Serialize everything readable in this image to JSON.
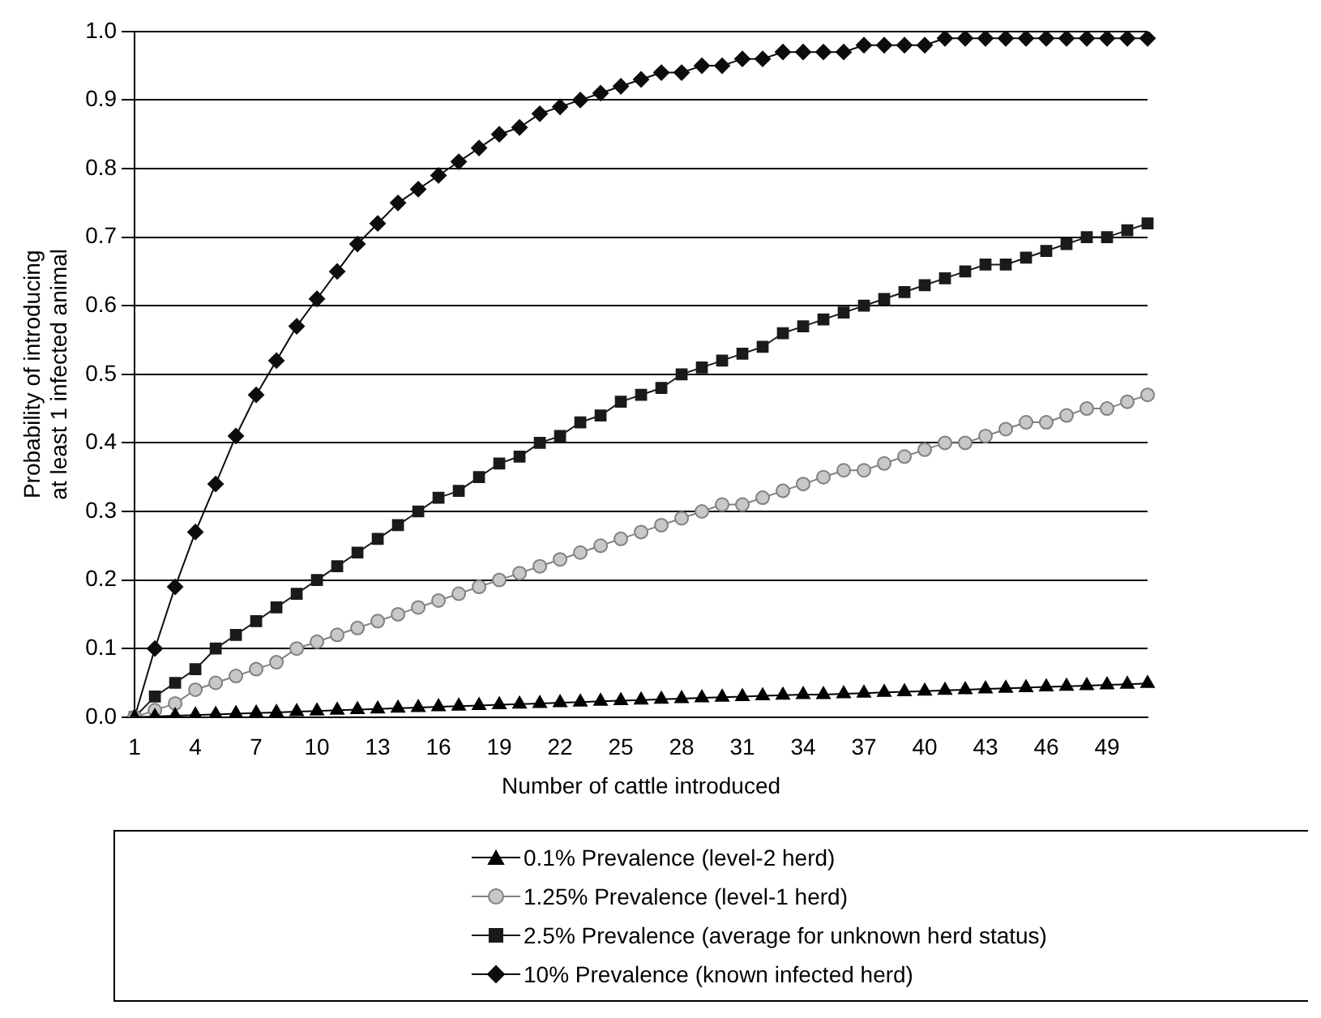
{
  "chart_data": {
    "type": "line",
    "xlabel": "Number of cattle introduced",
    "ylabel": "Probability of introducing\nat least 1 infected animal",
    "categories": [
      "1",
      null,
      null,
      "4",
      null,
      null,
      "7",
      null,
      null,
      "10",
      null,
      null,
      "13",
      null,
      null,
      "16",
      null,
      null,
      "19",
      null,
      null,
      "22",
      null,
      null,
      "25",
      null,
      null,
      "28",
      null,
      null,
      "31",
      null,
      null,
      "34",
      null,
      null,
      "37",
      null,
      null,
      "40",
      null,
      null,
      "43",
      null,
      null,
      "46",
      null,
      null,
      "49",
      null,
      null
    ],
    "ylim": [
      0,
      1
    ],
    "yticks": [
      {
        "value": 0,
        "label": "0.0"
      },
      {
        "value": 0.1,
        "label": "0.1"
      },
      {
        "value": 0.2,
        "label": "0.2"
      },
      {
        "value": 0.3,
        "label": "0.3"
      },
      {
        "value": 0.4,
        "label": "0.4"
      },
      {
        "value": 0.5,
        "label": "0.5"
      },
      {
        "value": 0.6,
        "label": "0.6"
      },
      {
        "value": 0.7,
        "label": "0.7"
      },
      {
        "value": 0.8,
        "label": "0.8"
      },
      {
        "value": 0.9,
        "label": "0.9"
      },
      {
        "value": 1,
        "label": "1.0"
      }
    ],
    "grid": "y",
    "legend": "bottom",
    "series": [
      {
        "name": "0.1% Prevalence (level-2 herd)",
        "color": "#000000",
        "marker": "triangle",
        "values": [
          0,
          0.001,
          0.002,
          0.003,
          0.004,
          0.005,
          0.006,
          0.007,
          0.008,
          0.009,
          0.01,
          0.011,
          0.012,
          0.013,
          0.014,
          0.015,
          0.016,
          0.017,
          0.018,
          0.019,
          0.02,
          0.021,
          0.022,
          0.023,
          0.024,
          0.025,
          0.026,
          0.027,
          0.028,
          0.029,
          0.03,
          0.031,
          0.032,
          0.033,
          0.033,
          0.034,
          0.035,
          0.036,
          0.037,
          0.038,
          0.039,
          0.04,
          0.041,
          0.042,
          0.043,
          0.044,
          0.045,
          0.046,
          0.047,
          0.048,
          0.049
        ]
      },
      {
        "name": "1.25% Prevalence (level-1 herd)",
        "color": "#c8c8c8",
        "marker": "circle",
        "values": [
          0,
          0.01,
          0.02,
          0.04,
          0.05,
          0.06,
          0.07,
          0.08,
          0.1,
          0.11,
          0.12,
          0.13,
          0.14,
          0.15,
          0.16,
          0.17,
          0.18,
          0.19,
          0.2,
          0.21,
          0.22,
          0.23,
          0.24,
          0.25,
          0.26,
          0.27,
          0.28,
          0.29,
          0.3,
          0.31,
          0.31,
          0.32,
          0.33,
          0.34,
          0.35,
          0.36,
          0.36,
          0.37,
          0.38,
          0.39,
          0.4,
          0.4,
          0.41,
          0.42,
          0.43,
          0.43,
          0.44,
          0.45,
          0.45,
          0.46,
          0.47
        ]
      },
      {
        "name": "2.5% Prevalence (average for unknown herd status)",
        "color": "#1a1a1a",
        "marker": "square",
        "values": [
          0,
          0.03,
          0.05,
          0.07,
          0.1,
          0.12,
          0.14,
          0.16,
          0.18,
          0.2,
          0.22,
          0.24,
          0.26,
          0.28,
          0.3,
          0.32,
          0.33,
          0.35,
          0.37,
          0.38,
          0.4,
          0.41,
          0.43,
          0.44,
          0.46,
          0.47,
          0.48,
          0.5,
          0.51,
          0.52,
          0.53,
          0.54,
          0.56,
          0.57,
          0.58,
          0.59,
          0.6,
          0.61,
          0.62,
          0.63,
          0.64,
          0.65,
          0.66,
          0.66,
          0.67,
          0.68,
          0.69,
          0.7,
          0.7,
          0.71,
          0.72
        ]
      },
      {
        "name": "10% Prevalence (known infected herd)",
        "color": "#0d0d0d",
        "marker": "diamond",
        "values": [
          0,
          0.1,
          0.19,
          0.27,
          0.34,
          0.41,
          0.47,
          0.52,
          0.57,
          0.61,
          0.65,
          0.69,
          0.72,
          0.75,
          0.77,
          0.79,
          0.81,
          0.83,
          0.85,
          0.86,
          0.88,
          0.89,
          0.9,
          0.91,
          0.92,
          0.93,
          0.94,
          0.94,
          0.95,
          0.95,
          0.96,
          0.96,
          0.97,
          0.97,
          0.97,
          0.97,
          0.98,
          0.98,
          0.98,
          0.98,
          0.99,
          0.99,
          0.99,
          0.99,
          0.99,
          0.99,
          0.99,
          0.99,
          0.99,
          0.99,
          0.99
        ]
      }
    ]
  }
}
